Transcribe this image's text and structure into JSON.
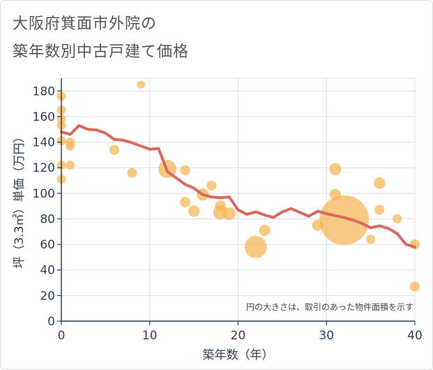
{
  "title_line1": "大阪府箕面市外院の",
  "title_line2": "築年数別中古戸建て価格",
  "chart_data": {
    "type": "scatter+line",
    "xlabel": "築年数（年）",
    "ylabel": "坪（3.3㎡）単価（万円）",
    "xlim": [
      0,
      40
    ],
    "ylim": [
      0,
      190
    ],
    "xticks": [
      0,
      10,
      20,
      30,
      40
    ],
    "yticks": [
      0,
      20,
      40,
      60,
      80,
      100,
      120,
      140,
      160,
      180
    ],
    "grid": true,
    "annotation": "円の大きさは、取引のあった物件面積を示す",
    "colors": {
      "bubble": "#f5b24f",
      "line": "#d9695a",
      "grid": "#d9dee6",
      "axis": "#2f3e55"
    },
    "bubbles": [
      {
        "x": 0,
        "y": 176,
        "size": 1
      },
      {
        "x": 0,
        "y": 165,
        "size": 1
      },
      {
        "x": 0,
        "y": 158,
        "size": 1
      },
      {
        "x": 0,
        "y": 153,
        "size": 1
      },
      {
        "x": 0,
        "y": 141,
        "size": 1
      },
      {
        "x": 0,
        "y": 122,
        "size": 1
      },
      {
        "x": 0,
        "y": 111,
        "size": 1
      },
      {
        "x": 1,
        "y": 140,
        "size": 1
      },
      {
        "x": 1,
        "y": 137,
        "size": 1
      },
      {
        "x": 1,
        "y": 122,
        "size": 1
      },
      {
        "x": 6,
        "y": 134,
        "size": 1.2
      },
      {
        "x": 8,
        "y": 116,
        "size": 1.2
      },
      {
        "x": 9,
        "y": 185,
        "size": 0.8
      },
      {
        "x": 12,
        "y": 119,
        "size": 4
      },
      {
        "x": 14,
        "y": 118,
        "size": 1.2
      },
      {
        "x": 14,
        "y": 93,
        "size": 1.3
      },
      {
        "x": 15,
        "y": 86,
        "size": 1.6
      },
      {
        "x": 16,
        "y": 99,
        "size": 1.8
      },
      {
        "x": 17,
        "y": 106,
        "size": 1.2
      },
      {
        "x": 18,
        "y": 90,
        "size": 1.5
      },
      {
        "x": 18,
        "y": 85,
        "size": 2.5
      },
      {
        "x": 19,
        "y": 84,
        "size": 2
      },
      {
        "x": 22,
        "y": 58,
        "size": 6
      },
      {
        "x": 23,
        "y": 71,
        "size": 1.5
      },
      {
        "x": 29,
        "y": 75,
        "size": 1.5
      },
      {
        "x": 31,
        "y": 119,
        "size": 1.8
      },
      {
        "x": 31,
        "y": 99,
        "size": 1.5
      },
      {
        "x": 32,
        "y": 79,
        "size": 30
      },
      {
        "x": 35,
        "y": 64,
        "size": 1
      },
      {
        "x": 36,
        "y": 108,
        "size": 1.6
      },
      {
        "x": 36,
        "y": 87,
        "size": 1.2
      },
      {
        "x": 38,
        "y": 80,
        "size": 1
      },
      {
        "x": 40,
        "y": 60,
        "size": 1.2
      },
      {
        "x": 40,
        "y": 27,
        "size": 1.2
      }
    ],
    "line": [
      [
        0,
        148
      ],
      [
        1,
        146
      ],
      [
        2,
        153
      ],
      [
        3,
        150
      ],
      [
        4,
        149.5
      ],
      [
        5,
        147
      ],
      [
        6,
        142
      ],
      [
        7,
        141.5
      ],
      [
        8,
        139.5
      ],
      [
        9,
        137
      ],
      [
        10,
        134.5
      ],
      [
        11,
        135
      ],
      [
        12,
        117
      ],
      [
        13,
        112
      ],
      [
        14,
        107
      ],
      [
        15,
        104
      ],
      [
        16,
        99
      ],
      [
        17,
        97
      ],
      [
        18,
        96.5
      ],
      [
        19,
        97
      ],
      [
        20,
        87
      ],
      [
        21,
        83.5
      ],
      [
        22,
        85.5
      ],
      [
        23,
        83
      ],
      [
        24,
        81
      ],
      [
        25,
        85.5
      ],
      [
        26,
        88
      ],
      [
        27,
        85
      ],
      [
        28,
        82
      ],
      [
        29,
        86
      ],
      [
        30,
        84
      ],
      [
        31,
        82.5
      ],
      [
        32,
        81
      ],
      [
        33,
        79
      ],
      [
        34,
        76.5
      ],
      [
        35,
        73
      ],
      [
        36,
        74.5
      ],
      [
        37,
        72.5
      ],
      [
        38,
        68.5
      ],
      [
        39,
        60
      ],
      [
        40,
        58
      ]
    ]
  }
}
